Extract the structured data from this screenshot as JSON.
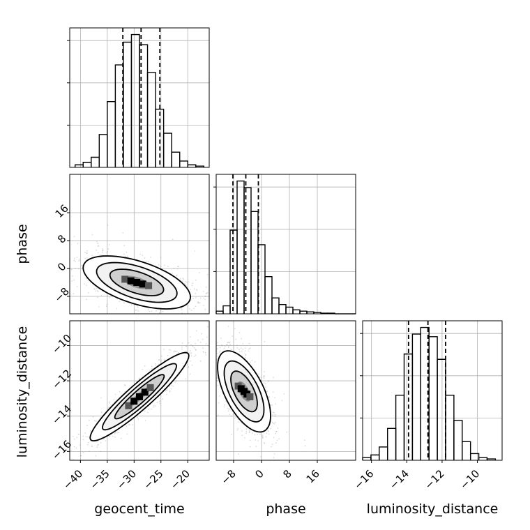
{
  "chart_data": {
    "type": "corner",
    "parameters": [
      "geocent_time",
      "phase",
      "luminosity_distance"
    ],
    "grid": true,
    "colors": {
      "line": "#000000",
      "grid": "#b0b0b0",
      "hist2d_dark": "#000000",
      "scatter": "#999999"
    },
    "axes": {
      "geocent_time": {
        "range": [
          -42,
          -16
        ],
        "ticks": [
          -40,
          -35,
          -30,
          -25,
          -20
        ],
        "tick_labels": [
          "−40",
          "−35",
          "−30",
          "−25",
          "−20"
        ]
      },
      "phase": {
        "range": [
          -13,
          27
        ],
        "ticks": [
          -8,
          0,
          8,
          16
        ],
        "tick_labels": [
          "−8",
          "0",
          "8",
          "16"
        ]
      },
      "luminosity_distance": {
        "range": [
          -16.5,
          -8.6
        ],
        "ticks": [
          -16,
          -14,
          -12,
          -10
        ],
        "tick_labels": [
          "−16",
          "−14",
          "−12",
          "−10"
        ]
      }
    },
    "histograms": [
      {
        "parameter": "geocent_time",
        "bin_edges": [
          -41,
          -39.5,
          -38,
          -36.5,
          -35,
          -33.5,
          -32,
          -30.5,
          -29,
          -27.5,
          -26,
          -24.5,
          -23,
          -21.5,
          -20,
          -18.5,
          -17
        ],
        "values": [
          0.02,
          0.04,
          0.08,
          0.26,
          0.52,
          0.81,
          0.99,
          1.05,
          0.97,
          0.75,
          0.46,
          0.27,
          0.12,
          0.05,
          0.02,
          0.01
        ],
        "quantiles": [
          -32.1,
          -28.7,
          -25.2
        ]
      },
      {
        "parameter": "phase",
        "bin_edges": [
          -13,
          -11,
          -9,
          -7,
          -5,
          -3,
          -1,
          1,
          3,
          5,
          7,
          9,
          11,
          13,
          15,
          17,
          19,
          21,
          23,
          25,
          27
        ],
        "values": [
          0.02,
          0.06,
          0.63,
          1.0,
          0.95,
          0.77,
          0.52,
          0.28,
          0.12,
          0.07,
          0.05,
          0.03,
          0.02,
          0.015,
          0.01,
          0.005,
          0.005,
          0,
          0,
          0
        ],
        "quantiles": [
          -8.2,
          -4.5,
          -0.9
        ]
      },
      {
        "parameter": "luminosity_distance",
        "bin_edges": [
          -16.5,
          -16.03,
          -15.56,
          -15.09,
          -14.62,
          -14.15,
          -13.68,
          -13.21,
          -12.74,
          -12.27,
          -11.8,
          -11.33,
          -10.86,
          -10.39,
          -9.92,
          -9.45,
          -8.98
        ],
        "values": [
          0.02,
          0.04,
          0.1,
          0.24,
          0.49,
          0.8,
          0.95,
          1.0,
          0.93,
          0.76,
          0.49,
          0.3,
          0.14,
          0.05,
          0.02,
          0.01
        ],
        "quantiles": [
          -13.9,
          -12.8,
          -11.8
        ]
      }
    ],
    "joint": [
      {
        "x": "geocent_time",
        "y": "phase",
        "mean": [
          -29.5,
          -4.0
        ],
        "sd": [
          5.0,
          3.8
        ],
        "corr": -0.55
      },
      {
        "x": "geocent_time",
        "y": "luminosity_distance",
        "mean": [
          -29.0,
          -12.9
        ],
        "sd": [
          4.6,
          1.25
        ],
        "corr": 0.93
      },
      {
        "x": "phase",
        "y": "luminosity_distance",
        "mean": [
          -5.0,
          -12.6
        ],
        "sd": [
          3.8,
          1.15
        ],
        "corr": -0.6
      }
    ],
    "contour_levels_sigma": [
      0.5,
      1.0,
      1.5,
      2.0
    ]
  }
}
